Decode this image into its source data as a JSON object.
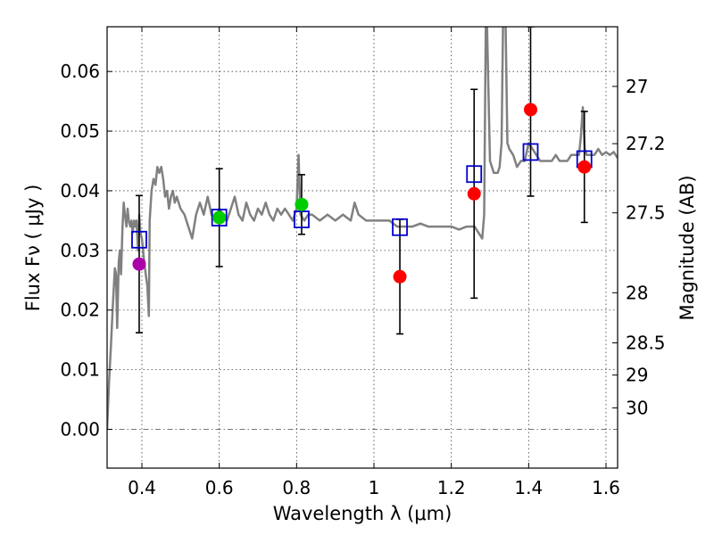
{
  "chart_data": {
    "type": "scatter",
    "title": "",
    "xlabel": "Wavelength  λ (μm)",
    "ylabel": "Flux  Fν  ( μJy )",
    "ylabel_right": "Magnitude (AB)",
    "xlim": [
      0.31,
      1.63
    ],
    "ylim": [
      -0.0065,
      0.0675
    ],
    "grid": true,
    "x_ticks": [
      0.4,
      0.6,
      0.8,
      1.0,
      1.2,
      1.4,
      1.6
    ],
    "x_tick_labels": [
      "0.4",
      "0.6",
      "0.8",
      "1",
      "1.2",
      "1.4",
      "1.6"
    ],
    "y_ticks": [
      0.0,
      0.01,
      0.02,
      0.03,
      0.04,
      0.05,
      0.06
    ],
    "y_tick_labels": [
      "0.00",
      "0.01",
      "0.02",
      "0.03",
      "0.04",
      "0.05",
      "0.06"
    ],
    "right_ticks": [
      {
        "label": "27",
        "flux": 0.0575
      },
      {
        "label": "27.2",
        "flux": 0.0479
      },
      {
        "label": "27.5",
        "flux": 0.0363
      },
      {
        "label": "28",
        "flux": 0.0229
      },
      {
        "label": "28.5",
        "flux": 0.0145
      },
      {
        "label": "29",
        "flux": 0.0091
      },
      {
        "label": "30",
        "flux": 0.0036
      }
    ],
    "sed_model": {
      "name": "model spectrum",
      "color": "#808080",
      "x": [
        0.31,
        0.315,
        0.32,
        0.325,
        0.33,
        0.333,
        0.336,
        0.34,
        0.343,
        0.346,
        0.35,
        0.353,
        0.356,
        0.36,
        0.363,
        0.366,
        0.37,
        0.373,
        0.376,
        0.38,
        0.383,
        0.386,
        0.39,
        0.393,
        0.396,
        0.4,
        0.403,
        0.406,
        0.41,
        0.414,
        0.418,
        0.42,
        0.425,
        0.43,
        0.435,
        0.44,
        0.445,
        0.45,
        0.455,
        0.46,
        0.465,
        0.47,
        0.475,
        0.48,
        0.485,
        0.49,
        0.5,
        0.51,
        0.52,
        0.53,
        0.54,
        0.55,
        0.56,
        0.57,
        0.58,
        0.59,
        0.6,
        0.61,
        0.62,
        0.63,
        0.64,
        0.65,
        0.66,
        0.67,
        0.68,
        0.69,
        0.7,
        0.71,
        0.72,
        0.73,
        0.74,
        0.75,
        0.76,
        0.77,
        0.78,
        0.79,
        0.8,
        0.805,
        0.81,
        0.82,
        0.83,
        0.84,
        0.86,
        0.88,
        0.9,
        0.92,
        0.94,
        0.95,
        0.96,
        0.98,
        1.0,
        1.02,
        1.04,
        1.06,
        1.08,
        1.1,
        1.12,
        1.14,
        1.16,
        1.18,
        1.2,
        1.22,
        1.24,
        1.26,
        1.27,
        1.28,
        1.285,
        1.29,
        1.295,
        1.3,
        1.31,
        1.32,
        1.325,
        1.33,
        1.335,
        1.34,
        1.345,
        1.35,
        1.36,
        1.37,
        1.38,
        1.39,
        1.4,
        1.41,
        1.42,
        1.43,
        1.44,
        1.45,
        1.46,
        1.47,
        1.48,
        1.49,
        1.5,
        1.51,
        1.52,
        1.53,
        1.535,
        1.54,
        1.545,
        1.55,
        1.56,
        1.57,
        1.58,
        1.59,
        1.6,
        1.61,
        1.62,
        1.63
      ],
      "y": [
        0.0,
        0.008,
        0.014,
        0.021,
        0.027,
        0.026,
        0.017,
        0.028,
        0.03,
        0.026,
        0.034,
        0.038,
        0.036,
        0.034,
        0.037,
        0.035,
        0.034,
        0.035,
        0.033,
        0.035,
        0.034,
        0.035,
        0.03,
        0.036,
        0.033,
        0.032,
        0.03,
        0.028,
        0.026,
        0.024,
        0.019,
        0.035,
        0.04,
        0.042,
        0.041,
        0.044,
        0.043,
        0.044,
        0.042,
        0.039,
        0.04,
        0.037,
        0.039,
        0.04,
        0.038,
        0.039,
        0.037,
        0.036,
        0.034,
        0.032,
        0.036,
        0.038,
        0.036,
        0.039,
        0.036,
        0.035,
        0.037,
        0.036,
        0.035,
        0.037,
        0.039,
        0.036,
        0.035,
        0.038,
        0.036,
        0.035,
        0.037,
        0.036,
        0.038,
        0.036,
        0.035,
        0.037,
        0.036,
        0.037,
        0.036,
        0.035,
        0.037,
        0.046,
        0.036,
        0.035,
        0.036,
        0.036,
        0.035,
        0.036,
        0.035,
        0.036,
        0.035,
        0.038,
        0.036,
        0.035,
        0.035,
        0.035,
        0.035,
        0.034,
        0.034,
        0.034,
        0.0345,
        0.034,
        0.034,
        0.034,
        0.034,
        0.0335,
        0.034,
        0.034,
        0.033,
        0.032,
        0.036,
        0.075,
        0.06,
        0.045,
        0.043,
        0.043,
        0.044,
        0.048,
        0.075,
        0.07,
        0.048,
        0.047,
        0.046,
        0.044,
        0.045,
        0.045,
        0.048,
        0.047,
        0.046,
        0.045,
        0.045,
        0.045,
        0.045,
        0.046,
        0.045,
        0.045,
        0.045,
        0.046,
        0.046,
        0.046,
        0.049,
        0.054,
        0.047,
        0.046,
        0.046,
        0.046,
        0.047,
        0.046,
        0.0465,
        0.046,
        0.0465,
        0.0455
      ]
    },
    "model_fluxes": {
      "name": "model fluxes",
      "marker": "open-square",
      "color": "#0000cc",
      "x": [
        0.393,
        0.6,
        0.813,
        1.067,
        1.259,
        1.405,
        1.544
      ],
      "y": [
        0.0318,
        0.0355,
        0.0352,
        0.0339,
        0.0428,
        0.0465,
        0.0453
      ]
    },
    "observed_fluxes": {
      "name": "observed fluxes",
      "x": [
        0.393,
        0.6,
        0.813,
        1.067,
        1.259,
        1.405,
        1.544
      ],
      "y": [
        0.0277,
        0.0355,
        0.0377,
        0.0256,
        0.0395,
        0.0536,
        0.044
      ],
      "yerr": [
        0.0115,
        0.0082,
        0.005,
        0.0096,
        0.0175,
        0.0145,
        0.0093
      ],
      "colors": [
        "#aa00aa",
        "#00cc00",
        "#00cc00",
        "#ff0000",
        "#ff0000",
        "#ff0000",
        "#ff0000"
      ]
    }
  }
}
